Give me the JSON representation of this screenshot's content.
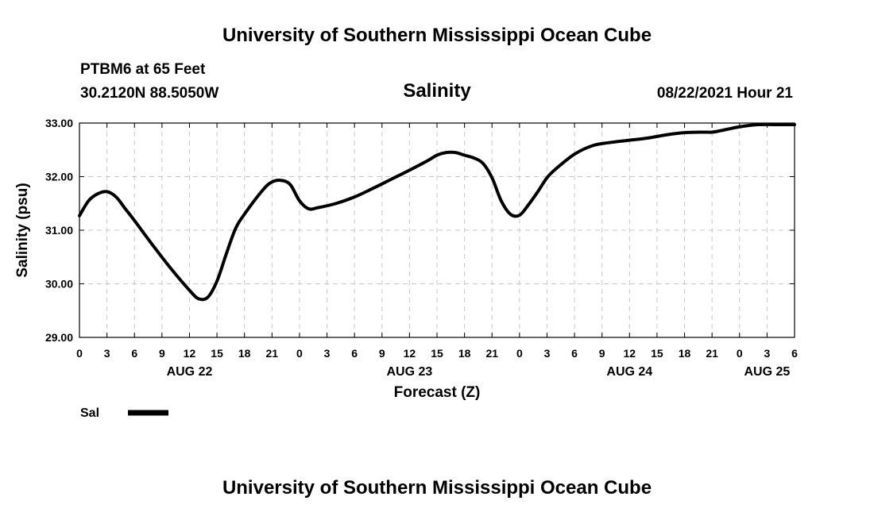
{
  "header": {
    "title": "University of Southern Mississippi Ocean Cube",
    "station": "PTBM6 at 65 Feet",
    "coords": "30.2120N  88.5050W",
    "subtitle": "Salinity",
    "datetime": "08/22/2021 Hour 21"
  },
  "footer": {
    "title": "University of Southern Mississippi Ocean Cube"
  },
  "chart_data": {
    "type": "line",
    "title": "Salinity",
    "xlabel": "Forecast (Z)",
    "ylabel": "Salinity (psu)",
    "xlim": [
      0,
      78
    ],
    "ylim": [
      29,
      33
    ],
    "grid": true,
    "line_color": "#000000",
    "grid_color": "#c8c8c8",
    "yticks": [
      {
        "value": 29,
        "label": "29.00"
      },
      {
        "value": 30,
        "label": "30.00"
      },
      {
        "value": 31,
        "label": "31.00"
      },
      {
        "value": 32,
        "label": "32.00"
      },
      {
        "value": 33,
        "label": "33.00"
      }
    ],
    "xticks": [
      {
        "value": 0,
        "label": "0"
      },
      {
        "value": 3,
        "label": "3"
      },
      {
        "value": 6,
        "label": "6"
      },
      {
        "value": 9,
        "label": "9"
      },
      {
        "value": 12,
        "label": "12"
      },
      {
        "value": 15,
        "label": "15"
      },
      {
        "value": 18,
        "label": "18"
      },
      {
        "value": 21,
        "label": "21"
      },
      {
        "value": 24,
        "label": "0"
      },
      {
        "value": 27,
        "label": "3"
      },
      {
        "value": 30,
        "label": "6"
      },
      {
        "value": 33,
        "label": "9"
      },
      {
        "value": 36,
        "label": "12"
      },
      {
        "value": 39,
        "label": "15"
      },
      {
        "value": 42,
        "label": "18"
      },
      {
        "value": 45,
        "label": "21"
      },
      {
        "value": 48,
        "label": "0"
      },
      {
        "value": 51,
        "label": "3"
      },
      {
        "value": 54,
        "label": "6"
      },
      {
        "value": 57,
        "label": "9"
      },
      {
        "value": 60,
        "label": "12"
      },
      {
        "value": 63,
        "label": "15"
      },
      {
        "value": 66,
        "label": "18"
      },
      {
        "value": 69,
        "label": "21"
      },
      {
        "value": 72,
        "label": "0"
      },
      {
        "value": 75,
        "label": "3"
      },
      {
        "value": 78,
        "label": "6"
      }
    ],
    "day_labels": [
      {
        "value": 12,
        "label": "AUG 22"
      },
      {
        "value": 36,
        "label": "AUG 23"
      },
      {
        "value": 60,
        "label": "AUG 24"
      },
      {
        "value": 75,
        "label": "AUG 25"
      }
    ],
    "legend": "bottom-left",
    "series": [
      {
        "name": "Sal",
        "x": [
          0,
          1,
          2,
          3,
          4,
          5,
          6,
          8,
          10,
          12,
          13,
          14,
          15,
          16,
          17,
          18,
          20,
          21,
          22,
          23,
          24,
          25,
          26,
          28,
          30,
          32,
          34,
          36,
          38,
          39,
          40,
          41,
          42,
          43,
          44,
          45,
          46,
          47,
          48,
          49,
          50,
          51,
          52,
          54,
          56,
          58,
          60,
          62,
          64,
          66,
          68,
          69,
          70,
          72,
          74,
          76,
          78
        ],
        "values": [
          31.27,
          31.55,
          31.68,
          31.72,
          31.62,
          31.4,
          31.18,
          30.72,
          30.28,
          29.88,
          29.72,
          29.75,
          30.05,
          30.55,
          31.02,
          31.3,
          31.75,
          31.9,
          31.93,
          31.85,
          31.55,
          31.4,
          31.42,
          31.5,
          31.62,
          31.78,
          31.95,
          32.12,
          32.3,
          32.4,
          32.45,
          32.45,
          32.4,
          32.35,
          32.25,
          31.98,
          31.55,
          31.3,
          31.28,
          31.48,
          31.72,
          31.98,
          32.15,
          32.42,
          32.58,
          32.64,
          32.68,
          32.72,
          32.78,
          32.82,
          32.83,
          32.83,
          32.86,
          32.93,
          32.97,
          32.97,
          32.97
        ]
      }
    ]
  }
}
